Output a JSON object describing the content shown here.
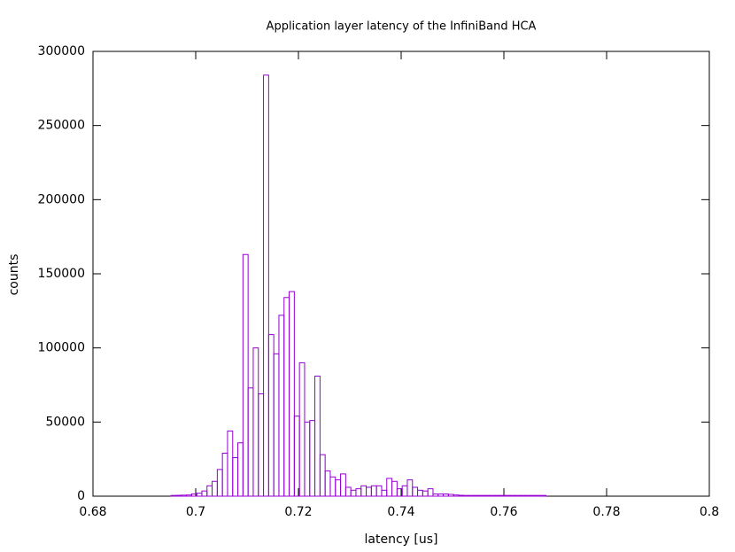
{
  "chart_data": {
    "type": "histogram",
    "title": "Application layer latency of the InfiniBand HCA",
    "xlabel": "latency [us]",
    "ylabel": "counts",
    "color": "#9400d3",
    "bins": [
      0.6952,
      0.6962,
      0.6972,
      0.6982,
      0.6992,
      0.7002,
      0.7012,
      0.7022,
      0.7032,
      0.7042,
      0.7052,
      0.7062,
      0.7072,
      0.7082,
      0.7092,
      0.7102,
      0.7112,
      0.7122,
      0.7132,
      0.7142,
      0.7152,
      0.7162,
      0.7172,
      0.7182,
      0.7192,
      0.7202,
      0.7212,
      0.7222,
      0.7232,
      0.7242,
      0.7252,
      0.7262,
      0.7272,
      0.7282,
      0.7292,
      0.7302,
      0.7312,
      0.7322,
      0.7332,
      0.7342,
      0.7352,
      0.7362,
      0.7372,
      0.7382,
      0.7392,
      0.7402,
      0.7412,
      0.7422,
      0.7432,
      0.7442,
      0.7452,
      0.7462,
      0.7472,
      0.7482,
      0.7492,
      0.7502,
      0.7512,
      0.7522,
      0.7532,
      0.7542,
      0.7552,
      0.7562,
      0.7572,
      0.7582,
      0.7592,
      0.7602,
      0.7612,
      0.7622,
      0.7632,
      0.7642,
      0.7652,
      0.7662,
      0.7672,
      0.7682
    ],
    "values": [
      500,
      600,
      700,
      800,
      1500,
      2000,
      3500,
      7000,
      10000,
      18000,
      29000,
      44000,
      26000,
      36000,
      163000,
      73000,
      100000,
      69000,
      284000,
      109000,
      96000,
      122000,
      134000,
      138000,
      54000,
      90000,
      50000,
      51000,
      81000,
      28000,
      17000,
      13000,
      11000,
      15000,
      6000,
      4000,
      5000,
      7000,
      6000,
      7000,
      7000,
      4000,
      12000,
      10000,
      5000,
      7000,
      11000,
      6000,
      4000,
      3500,
      5000,
      1500,
      1500,
      1500,
      1200,
      800,
      600,
      500,
      500,
      500,
      500,
      500,
      500,
      500,
      500,
      500,
      500,
      500,
      500,
      500,
      500,
      500,
      500
    ],
    "xlim": [
      0.68,
      0.8
    ],
    "xticks": [
      0.68,
      0.7,
      0.72,
      0.74,
      0.76,
      0.78,
      0.8
    ],
    "ylim": [
      0,
      300000
    ],
    "yticks": [
      0,
      50000,
      100000,
      150000,
      200000,
      250000,
      300000
    ]
  }
}
